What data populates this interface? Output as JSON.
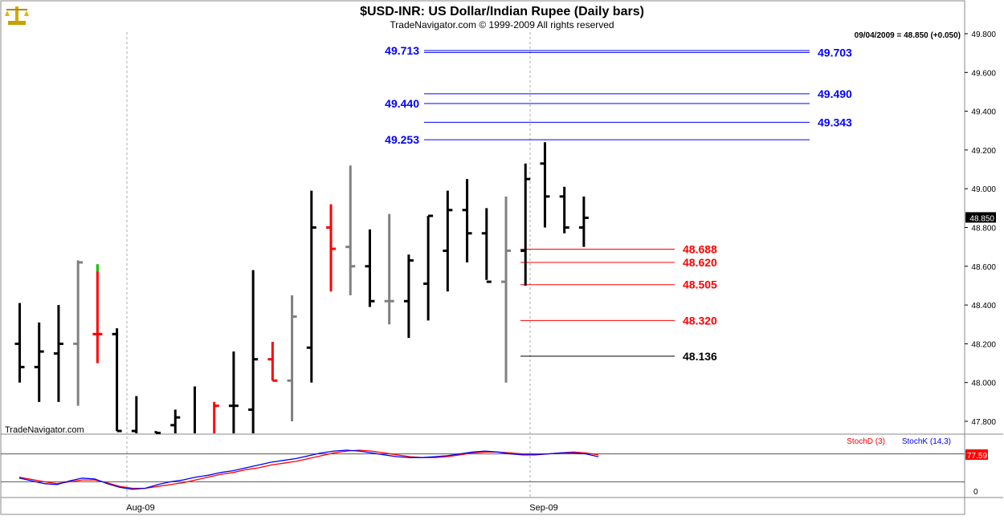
{
  "header": {
    "title": "$USD-INR:  US Dollar/Indian Rupee  (Daily bars)",
    "subtitle": "TradeNavigator.com © 1999-2009 All rights reserved",
    "quote": "09/04/2009 = 48.850 (+0.050)"
  },
  "watermark": "TradeNavigator.com",
  "colors": {
    "up_bar": "#000000",
    "down_bar": "#808080",
    "highlight_bar": "#ff0000",
    "blue_level": "#0000ff",
    "red_level": "#ff0000",
    "stochD": "#ff0000",
    "stochK": "#0000ff"
  },
  "icons": {
    "logo": "gold-scales-icon"
  },
  "chart_data": [
    {
      "type": "ohlc",
      "title": "$USD-INR:  US Dollar/Indian Rupee  (Daily bars)",
      "ylim": [
        47.7,
        49.9
      ],
      "y_ticks": [
        "49.800",
        "49.600",
        "49.400",
        "49.200",
        "49.000",
        "48.800",
        "48.600",
        "48.400",
        "48.200",
        "48.000",
        "47.800"
      ],
      "last_price": "48.850",
      "x_labels": [
        "Aug-09",
        "Sep-09"
      ],
      "bars": [
        {
          "o": 48.2,
          "h": 48.41,
          "l": 48.0,
          "c": 48.08,
          "color": "black"
        },
        {
          "o": 48.08,
          "h": 48.31,
          "l": 47.9,
          "c": 48.16,
          "color": "black"
        },
        {
          "o": 48.15,
          "h": 48.4,
          "l": 47.9,
          "c": 48.2,
          "color": "black"
        },
        {
          "o": 48.2,
          "h": 48.63,
          "l": 47.88,
          "c": 48.62,
          "color": "gray"
        },
        {
          "o": 48.25,
          "h": 48.61,
          "l": 48.1,
          "c": 48.25,
          "color": "red"
        },
        {
          "o": 48.25,
          "h": 48.28,
          "l": 47.75,
          "c": 47.75,
          "color": "black"
        },
        {
          "o": 47.75,
          "h": 47.93,
          "l": 47.7,
          "c": 47.72,
          "color": "black"
        },
        {
          "o": 47.73,
          "h": 47.75,
          "l": 47.7,
          "c": 47.74,
          "color": "black"
        },
        {
          "o": 47.78,
          "h": 47.86,
          "l": 47.7,
          "c": 47.82,
          "color": "black"
        },
        {
          "o": 47.72,
          "h": 47.98,
          "l": 47.7,
          "c": 47.72,
          "color": "black"
        },
        {
          "o": 47.72,
          "h": 47.9,
          "l": 47.7,
          "c": 47.88,
          "color": "red"
        },
        {
          "o": 47.88,
          "h": 48.16,
          "l": 47.7,
          "c": 47.88,
          "color": "black"
        },
        {
          "o": 47.86,
          "h": 48.58,
          "l": 47.7,
          "c": 48.12,
          "color": "black"
        },
        {
          "o": 48.12,
          "h": 48.21,
          "l": 48.01,
          "c": 48.01,
          "color": "red"
        },
        {
          "o": 48.01,
          "h": 48.45,
          "l": 47.8,
          "c": 48.34,
          "color": "gray"
        },
        {
          "o": 48.18,
          "h": 48.99,
          "l": 48.0,
          "c": 48.8,
          "color": "black"
        },
        {
          "o": 48.8,
          "h": 48.92,
          "l": 48.47,
          "c": 48.69,
          "color": "red"
        },
        {
          "o": 48.7,
          "h": 49.12,
          "l": 48.45,
          "c": 48.6,
          "color": "gray"
        },
        {
          "o": 48.6,
          "h": 48.79,
          "l": 48.39,
          "c": 48.42,
          "color": "black"
        },
        {
          "o": 48.42,
          "h": 48.87,
          "l": 48.3,
          "c": 48.42,
          "color": "gray"
        },
        {
          "o": 48.42,
          "h": 48.66,
          "l": 48.23,
          "c": 48.63,
          "color": "black"
        },
        {
          "o": 48.51,
          "h": 48.86,
          "l": 48.32,
          "c": 48.86,
          "color": "black"
        },
        {
          "o": 48.68,
          "h": 48.99,
          "l": 48.47,
          "c": 48.89,
          "color": "black"
        },
        {
          "o": 48.89,
          "h": 49.05,
          "l": 48.62,
          "c": 48.77,
          "color": "black"
        },
        {
          "o": 48.77,
          "h": 48.9,
          "l": 48.53,
          "c": 48.52,
          "color": "black"
        },
        {
          "o": 48.52,
          "h": 48.96,
          "l": 48.0,
          "c": 48.68,
          "color": "gray"
        },
        {
          "o": 48.68,
          "h": 49.13,
          "l": 48.5,
          "c": 49.05,
          "color": "black"
        },
        {
          "o": 49.13,
          "h": 49.24,
          "l": 48.8,
          "c": 48.96,
          "color": "black"
        },
        {
          "o": 48.96,
          "h": 49.01,
          "l": 48.77,
          "c": 48.8,
          "color": "black"
        },
        {
          "o": 48.8,
          "h": 48.96,
          "l": 48.7,
          "c": 48.85,
          "color": "black"
        }
      ],
      "levels_upper": [
        {
          "label": "49.713",
          "value": 49.713,
          "side": "left"
        },
        {
          "label": "49.703",
          "value": 49.703,
          "side": "right"
        },
        {
          "label": "49.490",
          "value": 49.49,
          "side": "right"
        },
        {
          "label": "49.440",
          "value": 49.44,
          "side": "left"
        },
        {
          "label": "49.343",
          "value": 49.343,
          "side": "right"
        },
        {
          "label": "49.253",
          "value": 49.253,
          "side": "left"
        }
      ],
      "levels_lower": [
        {
          "label": "48.688",
          "value": 48.688,
          "color": "red"
        },
        {
          "label": "48.620",
          "value": 48.62,
          "color": "red"
        },
        {
          "label": "48.505",
          "value": 48.505,
          "color": "red"
        },
        {
          "label": "48.320",
          "value": 48.32,
          "color": "red"
        },
        {
          "label": "48.136",
          "value": 48.136,
          "color": "black"
        }
      ]
    },
    {
      "type": "line",
      "legend": [
        "StochD (3)",
        "StochK (14,3)"
      ],
      "ylim": [
        -10,
        110
      ],
      "y_ticks": [
        "0"
      ],
      "reference_lines": [
        80,
        20
      ],
      "last_value": "77.59",
      "series": [
        {
          "name": "StochD (3)",
          "values": [
            30,
            25,
            20,
            16,
            20,
            24,
            24,
            18,
            10,
            6,
            6,
            10,
            14,
            18,
            24,
            30,
            36,
            40,
            46,
            50,
            56,
            60,
            64,
            70,
            76,
            82,
            86,
            88,
            86,
            82,
            78,
            74,
            72,
            72,
            74,
            78,
            82,
            84,
            84,
            82,
            80,
            80,
            80,
            82,
            84,
            82,
            78
          ]
        },
        {
          "name": "StochK (14,3)",
          "values": [
            28,
            22,
            16,
            14,
            22,
            28,
            26,
            16,
            8,
            4,
            6,
            14,
            20,
            24,
            30,
            34,
            40,
            44,
            50,
            56,
            62,
            66,
            70,
            76,
            82,
            86,
            88,
            86,
            82,
            78,
            74,
            72,
            72,
            74,
            76,
            80,
            84,
            86,
            84,
            80,
            78,
            78,
            80,
            82,
            82,
            80,
            74
          ]
        }
      ]
    }
  ]
}
